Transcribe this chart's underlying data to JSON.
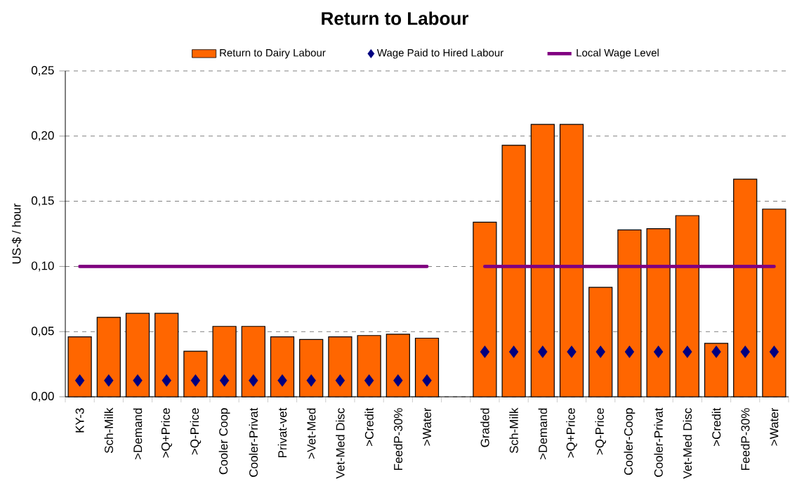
{
  "chart_data": {
    "type": "bar",
    "title": "Return to Labour",
    "ylabel": "US-$  / hour",
    "categories": [
      "KY-3",
      "Sch-Milk",
      ">Demand",
      ">Q+Price",
      ">Q-Price",
      "Cooler Coop",
      "Cooler-Privat",
      "Privat-vet",
      ">Vet-Med",
      "Vet-Med Disc",
      ">Credit",
      "FeedP-30%",
      ">Water",
      null,
      "Graded",
      "Sch-Milk",
      ">Demand",
      ">Q+Price",
      ">Q-Price",
      "Cooler-Coop",
      "Cooler-Privat",
      "Vet-Med Disc",
      ">Credit",
      "FeedP-30%",
      ">Water"
    ],
    "series": [
      {
        "name": "Return to Dairy Labour",
        "color": "#ff6600",
        "values": [
          0.046,
          0.061,
          0.064,
          0.064,
          0.035,
          0.054,
          0.054,
          0.046,
          0.044,
          0.046,
          0.047,
          0.048,
          0.045,
          null,
          0.134,
          0.193,
          0.209,
          0.209,
          0.084,
          0.128,
          0.129,
          0.139,
          0.041,
          0.167,
          0.144
        ]
      },
      {
        "name": "Wage Paid to Hired Labour",
        "type": "scatter",
        "marker": "diamond",
        "color": "#000080",
        "values": [
          0.0125,
          0.0125,
          0.0125,
          0.0125,
          0.0125,
          0.0125,
          0.0125,
          0.0125,
          0.0125,
          0.0125,
          0.0125,
          0.0125,
          0.0125,
          null,
          0.0345,
          0.0345,
          0.0345,
          0.0345,
          0.0345,
          0.0345,
          0.0345,
          0.0345,
          0.0345,
          0.0345,
          0.0345
        ]
      },
      {
        "name": "Local Wage Level",
        "type": "line",
        "color": "#800080",
        "values": [
          0.1,
          0.1,
          0.1,
          0.1,
          0.1,
          0.1,
          0.1,
          0.1,
          0.1,
          0.1,
          0.1,
          0.1,
          0.1,
          null,
          0.1,
          0.1,
          0.1,
          0.1,
          0.1,
          0.1,
          0.1,
          0.1,
          0.1,
          0.1,
          0.1
        ]
      }
    ],
    "ylim": [
      0,
      0.25
    ],
    "yticks": [
      {
        "value": 0,
        "label": "0,00"
      },
      {
        "value": 0.05,
        "label": "0,05"
      },
      {
        "value": 0.1,
        "label": "0,10"
      },
      {
        "value": 0.15,
        "label": "0,15"
      },
      {
        "value": 0.2,
        "label": "0,20"
      },
      {
        "value": 0.25,
        "label": "0,25"
      }
    ],
    "grid": "y",
    "legend": "top"
  }
}
